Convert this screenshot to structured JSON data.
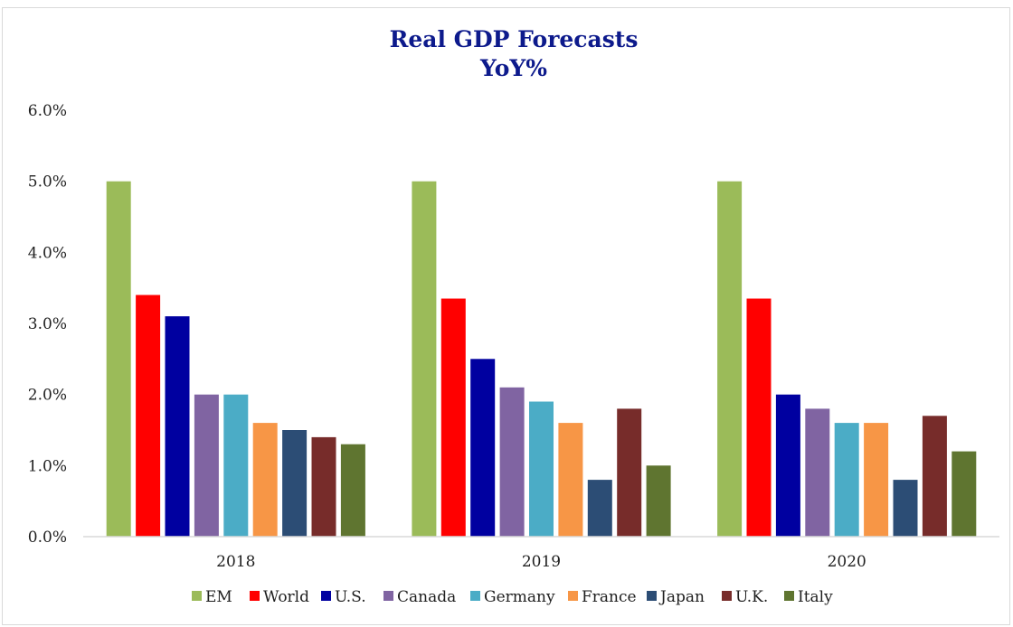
{
  "chart_data": {
    "type": "bar",
    "title": "Real GDP Forecasts",
    "subtitle": "YoY%",
    "categories": [
      "2018",
      "2019",
      "2020"
    ],
    "ylim": [
      0,
      6
    ],
    "yticks": [
      0,
      1,
      2,
      3,
      4,
      5,
      6
    ],
    "ytick_labels": [
      "0.0%",
      "1.0%",
      "2.0%",
      "3.0%",
      "4.0%",
      "5.0%",
      "6.0%"
    ],
    "grid": false,
    "legend_position": "bottom",
    "series": [
      {
        "name": "EM",
        "color": "#9bbb59",
        "values": [
          5.0,
          5.0,
          5.0
        ]
      },
      {
        "name": "World",
        "color": "#ff0000",
        "values": [
          3.4,
          3.35,
          3.35
        ]
      },
      {
        "name": "U.S.",
        "color": "#0000a0",
        "values": [
          3.1,
          2.5,
          2.0
        ]
      },
      {
        "name": "Canada",
        "color": "#8064a2",
        "values": [
          2.0,
          2.1,
          1.8
        ]
      },
      {
        "name": "Germany",
        "color": "#4bacc6",
        "values": [
          2.0,
          1.9,
          1.6
        ]
      },
      {
        "name": "France",
        "color": "#f79646",
        "values": [
          1.6,
          1.6,
          1.6
        ]
      },
      {
        "name": "Japan",
        "color": "#2c4d75",
        "values": [
          1.5,
          0.8,
          0.8
        ]
      },
      {
        "name": "U.K.",
        "color": "#772c2a",
        "values": [
          1.4,
          1.8,
          1.7
        ]
      },
      {
        "name": "Italy",
        "color": "#5f7530",
        "values": [
          1.3,
          1.0,
          1.2
        ]
      }
    ]
  }
}
